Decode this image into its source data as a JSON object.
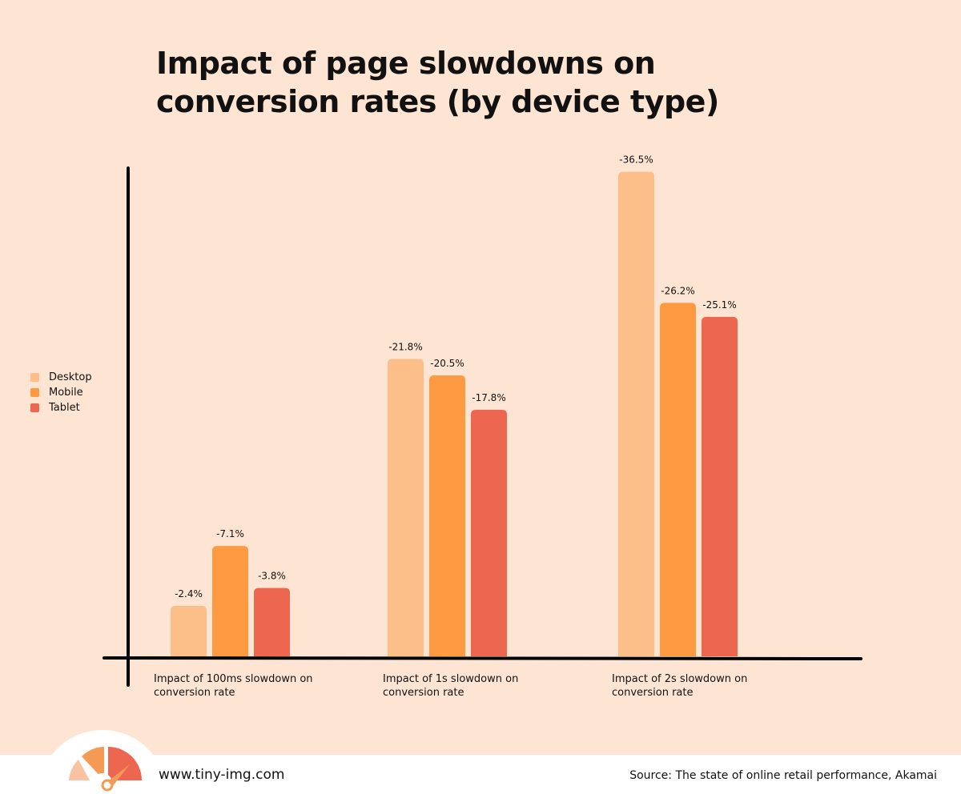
{
  "title": "Impact of page slowdowns on conversion rates (by device type)",
  "chart_data": {
    "type": "bar",
    "title": "Impact of page slowdowns on conversion rates (by device type)",
    "categories": [
      "Impact of 100ms slowdown on conversion rate",
      "Impact of 1s slowdown on conversion rate",
      "Impact of 2s slowdown on conversion rate"
    ],
    "series": [
      {
        "name": "Desktop",
        "color": "#fdbf8a",
        "values": [
          -2.4,
          -21.8,
          -36.5
        ],
        "labels": [
          "-2.4%",
          "-21.8%",
          "-36.5%"
        ]
      },
      {
        "name": "Mobile",
        "color": "#fd9a42",
        "values": [
          -7.1,
          -20.5,
          -26.2
        ],
        "labels": [
          "-7.1%",
          "-20.5%",
          "-26.2%"
        ]
      },
      {
        "name": "Tablet",
        "color": "#ec6650",
        "values": [
          -3.8,
          -17.8,
          -25.1
        ],
        "labels": [
          "-3.8%",
          "-17.8%",
          "-25.1%"
        ]
      }
    ],
    "legend": "left",
    "grid": false
  },
  "footer": {
    "site": "www.tiny-img.com",
    "source": "Source: The state of online retail performance, Akamai"
  }
}
